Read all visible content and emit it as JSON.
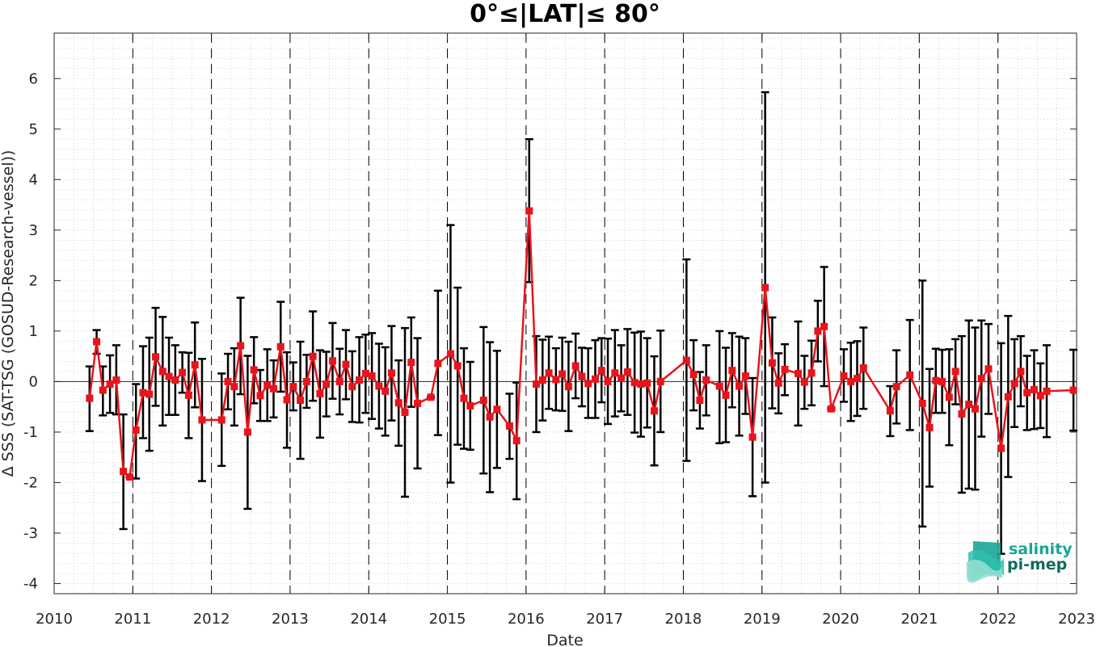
{
  "chart_data": {
    "type": "line",
    "title": "0°≤|LAT|≤ 80°",
    "xlabel": "Date",
    "ylabel": "Δ SSS (SAT-TSG (GOSUD-Research-vessel))",
    "xlim": [
      2010,
      2023
    ],
    "ylim": [
      -4.2,
      6.9
    ],
    "xticks": [
      "2010",
      "2011",
      "2012",
      "2013",
      "2014",
      "2015",
      "2016",
      "2017",
      "2018",
      "2019",
      "2020",
      "2021",
      "2022",
      "2023"
    ],
    "yticks": [
      "-4",
      "-3",
      "-2",
      "-1",
      "0",
      "1",
      "2",
      "3",
      "4",
      "5",
      "6"
    ],
    "grid": "dotted minor grid",
    "zero_line": 0,
    "year_separators": [
      2011,
      2012,
      2013,
      2014,
      2015,
      2016,
      2017,
      2018,
      2019,
      2020,
      2021,
      2022
    ],
    "series": [
      {
        "color": "#e8141c",
        "errorbar_color": "#000000",
        "marker": "square",
        "points": [
          {
            "x": 2010.45,
            "y": -0.33,
            "lo": -0.98,
            "hi": 0.3
          },
          {
            "x": 2010.54,
            "y": 0.79,
            "lo": 0.55,
            "hi": 1.02
          },
          {
            "x": 2010.62,
            "y": -0.17,
            "lo": -0.67,
            "hi": 0.3
          },
          {
            "x": 2010.71,
            "y": -0.05,
            "lo": -0.62,
            "hi": 0.52
          },
          {
            "x": 2010.79,
            "y": 0.03,
            "lo": -0.65,
            "hi": 0.72
          },
          {
            "x": 2010.88,
            "y": -1.78,
            "lo": -2.92,
            "hi": -0.65
          },
          {
            "x": 2010.96,
            "y": -1.89,
            "lo": -1.9,
            "hi": -1.88
          },
          {
            "x": 2011.04,
            "y": -0.96,
            "lo": -1.92,
            "hi": -0.05
          },
          {
            "x": 2011.13,
            "y": -0.22,
            "lo": -1.12,
            "hi": 0.7
          },
          {
            "x": 2011.21,
            "y": -0.25,
            "lo": -1.37,
            "hi": 0.87
          },
          {
            "x": 2011.29,
            "y": 0.49,
            "lo": -0.48,
            "hi": 1.46
          },
          {
            "x": 2011.38,
            "y": 0.2,
            "lo": -0.87,
            "hi": 1.28
          },
          {
            "x": 2011.46,
            "y": 0.1,
            "lo": -0.66,
            "hi": 0.87
          },
          {
            "x": 2011.54,
            "y": 0.03,
            "lo": -0.66,
            "hi": 0.72
          },
          {
            "x": 2011.63,
            "y": 0.18,
            "lo": -0.22,
            "hi": 0.58
          },
          {
            "x": 2011.71,
            "y": -0.27,
            "lo": -1.12,
            "hi": 0.57
          },
          {
            "x": 2011.79,
            "y": 0.33,
            "lo": -0.51,
            "hi": 1.17
          },
          {
            "x": 2011.88,
            "y": -0.76,
            "lo": -1.97,
            "hi": 0.45
          },
          {
            "x": 2012.13,
            "y": -0.76,
            "lo": -1.67,
            "hi": 0.16
          },
          {
            "x": 2012.21,
            "y": 0.0,
            "lo": -0.55,
            "hi": 0.55
          },
          {
            "x": 2012.29,
            "y": -0.1,
            "lo": -0.87,
            "hi": 0.66
          },
          {
            "x": 2012.37,
            "y": 0.71,
            "lo": -0.25,
            "hi": 1.66
          },
          {
            "x": 2012.46,
            "y": -1.0,
            "lo": -2.52,
            "hi": 0.51
          },
          {
            "x": 2012.54,
            "y": 0.23,
            "lo": -0.43,
            "hi": 0.88
          },
          {
            "x": 2012.62,
            "y": -0.28,
            "lo": -0.78,
            "hi": 0.23
          },
          {
            "x": 2012.71,
            "y": -0.07,
            "lo": -0.78,
            "hi": 0.64
          },
          {
            "x": 2012.79,
            "y": -0.14,
            "lo": -0.71,
            "hi": 0.42
          },
          {
            "x": 2012.88,
            "y": 0.69,
            "lo": -0.2,
            "hi": 1.58
          },
          {
            "x": 2012.96,
            "y": -0.36,
            "lo": -1.31,
            "hi": 0.58
          },
          {
            "x": 2013.04,
            "y": -0.1,
            "lo": -0.57,
            "hi": 0.38
          },
          {
            "x": 2013.13,
            "y": -0.37,
            "lo": -1.53,
            "hi": 0.79
          },
          {
            "x": 2013.21,
            "y": 0.0,
            "lo": -0.52,
            "hi": 0.53
          },
          {
            "x": 2013.29,
            "y": 0.5,
            "lo": -0.38,
            "hi": 1.39
          },
          {
            "x": 2013.38,
            "y": -0.24,
            "lo": -1.11,
            "hi": 0.62
          },
          {
            "x": 2013.46,
            "y": -0.05,
            "lo": -0.69,
            "hi": 0.59
          },
          {
            "x": 2013.54,
            "y": 0.41,
            "lo": -0.34,
            "hi": 1.16
          },
          {
            "x": 2013.63,
            "y": 0.0,
            "lo": -0.65,
            "hi": 0.65
          },
          {
            "x": 2013.71,
            "y": 0.34,
            "lo": -0.35,
            "hi": 1.02
          },
          {
            "x": 2013.79,
            "y": -0.1,
            "lo": -0.8,
            "hi": 0.6
          },
          {
            "x": 2013.88,
            "y": 0.03,
            "lo": -0.81,
            "hi": 0.88
          },
          {
            "x": 2013.96,
            "y": 0.16,
            "lo": -0.62,
            "hi": 0.93
          },
          {
            "x": 2014.04,
            "y": 0.11,
            "lo": -0.74,
            "hi": 0.96
          },
          {
            "x": 2014.13,
            "y": -0.09,
            "lo": -0.93,
            "hi": 0.75
          },
          {
            "x": 2014.21,
            "y": -0.19,
            "lo": -1.07,
            "hi": 0.68
          },
          {
            "x": 2014.29,
            "y": 0.17,
            "lo": -0.77,
            "hi": 1.1
          },
          {
            "x": 2014.38,
            "y": -0.42,
            "lo": -1.27,
            "hi": 0.42
          },
          {
            "x": 2014.46,
            "y": -0.61,
            "lo": -2.28,
            "hi": 1.06
          },
          {
            "x": 2014.54,
            "y": 0.38,
            "lo": -0.5,
            "hi": 1.27
          },
          {
            "x": 2014.62,
            "y": -0.43,
            "lo": -1.72,
            "hi": 0.86
          },
          {
            "x": 2014.79,
            "y": -0.31,
            "lo": -0.32,
            "hi": -0.3
          },
          {
            "x": 2014.88,
            "y": 0.36,
            "lo": -1.06,
            "hi": 1.8
          },
          {
            "x": 2015.04,
            "y": 0.55,
            "lo": -2.0,
            "hi": 3.1
          },
          {
            "x": 2015.13,
            "y": 0.31,
            "lo": -1.25,
            "hi": 1.86
          },
          {
            "x": 2015.21,
            "y": -0.33,
            "lo": -1.33,
            "hi": 0.66
          },
          {
            "x": 2015.29,
            "y": -0.48,
            "lo": -1.35,
            "hi": 0.39
          },
          {
            "x": 2015.46,
            "y": -0.37,
            "lo": -1.82,
            "hi": 1.08
          },
          {
            "x": 2015.54,
            "y": -0.7,
            "lo": -2.19,
            "hi": 0.78
          },
          {
            "x": 2015.63,
            "y": -0.55,
            "lo": -1.71,
            "hi": 0.61
          },
          {
            "x": 2015.79,
            "y": -0.88,
            "lo": -1.53,
            "hi": -0.24
          },
          {
            "x": 2015.88,
            "y": -1.17,
            "lo": -2.33,
            "hi": -0.02
          },
          {
            "x": 2016.04,
            "y": 3.38,
            "lo": 1.97,
            "hi": 4.8
          },
          {
            "x": 2016.13,
            "y": -0.05,
            "lo": -1.0,
            "hi": 0.9
          },
          {
            "x": 2016.21,
            "y": 0.03,
            "lo": -0.77,
            "hi": 0.83
          },
          {
            "x": 2016.29,
            "y": 0.17,
            "lo": -0.54,
            "hi": 0.89
          },
          {
            "x": 2016.38,
            "y": 0.04,
            "lo": -0.57,
            "hi": 0.66
          },
          {
            "x": 2016.46,
            "y": 0.15,
            "lo": -0.58,
            "hi": 0.87
          },
          {
            "x": 2016.54,
            "y": -0.1,
            "lo": -0.98,
            "hi": 0.79
          },
          {
            "x": 2016.63,
            "y": 0.31,
            "lo": -0.33,
            "hi": 0.95
          },
          {
            "x": 2016.71,
            "y": 0.1,
            "lo": -0.49,
            "hi": 0.67
          },
          {
            "x": 2016.79,
            "y": -0.04,
            "lo": -0.72,
            "hi": 0.66
          },
          {
            "x": 2016.88,
            "y": 0.05,
            "lo": -0.72,
            "hi": 0.82
          },
          {
            "x": 2016.96,
            "y": 0.22,
            "lo": -0.41,
            "hi": 0.86
          },
          {
            "x": 2017.04,
            "y": 0.0,
            "lo": -0.84,
            "hi": 0.85
          },
          {
            "x": 2017.13,
            "y": 0.17,
            "lo": -0.69,
            "hi": 1.02
          },
          {
            "x": 2017.21,
            "y": 0.07,
            "lo": -0.59,
            "hi": 0.72
          },
          {
            "x": 2017.29,
            "y": 0.19,
            "lo": -0.66,
            "hi": 1.04
          },
          {
            "x": 2017.38,
            "y": -0.02,
            "lo": -1.01,
            "hi": 0.97
          },
          {
            "x": 2017.46,
            "y": -0.05,
            "lo": -1.09,
            "hi": 0.99
          },
          {
            "x": 2017.54,
            "y": -0.03,
            "lo": -0.91,
            "hi": 0.86
          },
          {
            "x": 2017.63,
            "y": -0.58,
            "lo": -1.66,
            "hi": 0.5
          },
          {
            "x": 2017.71,
            "y": 0.0,
            "lo": -1.0,
            "hi": 1.01
          },
          {
            "x": 2018.04,
            "y": 0.42,
            "lo": -1.57,
            "hi": 2.42
          },
          {
            "x": 2018.13,
            "y": 0.14,
            "lo": -0.57,
            "hi": 0.82
          },
          {
            "x": 2018.21,
            "y": -0.37,
            "lo": -0.93,
            "hi": 0.19
          },
          {
            "x": 2018.29,
            "y": 0.03,
            "lo": -0.67,
            "hi": 0.72
          },
          {
            "x": 2018.46,
            "y": -0.09,
            "lo": -1.22,
            "hi": 1.0
          },
          {
            "x": 2018.54,
            "y": -0.27,
            "lo": -1.2,
            "hi": 0.67
          },
          {
            "x": 2018.62,
            "y": 0.22,
            "lo": -0.51,
            "hi": 0.96
          },
          {
            "x": 2018.71,
            "y": -0.09,
            "lo": -1.07,
            "hi": 0.89
          },
          {
            "x": 2018.79,
            "y": 0.11,
            "lo": -0.64,
            "hi": 0.86
          },
          {
            "x": 2018.88,
            "y": -1.1,
            "lo": -2.27,
            "hi": 0.07
          },
          {
            "x": 2019.04,
            "y": 1.86,
            "lo": -2.0,
            "hi": 5.73
          },
          {
            "x": 2019.13,
            "y": 0.37,
            "lo": -0.53,
            "hi": 1.27
          },
          {
            "x": 2019.21,
            "y": -0.03,
            "lo": -0.63,
            "hi": 0.56
          },
          {
            "x": 2019.29,
            "y": 0.24,
            "lo": -0.27,
            "hi": 0.74
          },
          {
            "x": 2019.46,
            "y": 0.16,
            "lo": -0.87,
            "hi": 1.19
          },
          {
            "x": 2019.54,
            "y": -0.01,
            "lo": -0.54,
            "hi": 0.51
          },
          {
            "x": 2019.63,
            "y": 0.17,
            "lo": -0.47,
            "hi": 0.81
          },
          {
            "x": 2019.71,
            "y": 1.0,
            "lo": 0.4,
            "hi": 1.6
          },
          {
            "x": 2019.79,
            "y": 1.09,
            "lo": -0.09,
            "hi": 2.27
          },
          {
            "x": 2019.88,
            "y": -0.54,
            "lo": -0.56,
            "hi": -0.52
          },
          {
            "x": 2020.04,
            "y": 0.11,
            "lo": -0.4,
            "hi": 0.64
          },
          {
            "x": 2020.13,
            "y": 0.0,
            "lo": -0.78,
            "hi": 0.77
          },
          {
            "x": 2020.21,
            "y": 0.06,
            "lo": -0.68,
            "hi": 0.8
          },
          {
            "x": 2020.29,
            "y": 0.27,
            "lo": -0.54,
            "hi": 1.07
          },
          {
            "x": 2020.63,
            "y": -0.58,
            "lo": -1.08,
            "hi": -0.09
          },
          {
            "x": 2020.71,
            "y": -0.1,
            "lo": -0.83,
            "hi": 0.62
          },
          {
            "x": 2020.88,
            "y": 0.13,
            "lo": -0.96,
            "hi": 1.22
          },
          {
            "x": 2021.04,
            "y": -0.43,
            "lo": -2.87,
            "hi": 2.0
          },
          {
            "x": 2021.13,
            "y": -0.91,
            "lo": -2.08,
            "hi": 0.25
          },
          {
            "x": 2021.21,
            "y": 0.02,
            "lo": -0.62,
            "hi": 0.65
          },
          {
            "x": 2021.29,
            "y": 0.0,
            "lo": -0.62,
            "hi": 0.63
          },
          {
            "x": 2021.38,
            "y": -0.31,
            "lo": -1.26,
            "hi": 0.64
          },
          {
            "x": 2021.46,
            "y": 0.2,
            "lo": -0.45,
            "hi": 0.84
          },
          {
            "x": 2021.54,
            "y": -0.64,
            "lo": -2.2,
            "hi": 0.9
          },
          {
            "x": 2021.63,
            "y": -0.45,
            "lo": -2.12,
            "hi": 1.21
          },
          {
            "x": 2021.71,
            "y": -0.54,
            "lo": -2.14,
            "hi": 1.07
          },
          {
            "x": 2021.79,
            "y": 0.06,
            "lo": -1.09,
            "hi": 1.21
          },
          {
            "x": 2021.88,
            "y": 0.25,
            "lo": -0.64,
            "hi": 1.14
          },
          {
            "x": 2022.04,
            "y": -1.32,
            "lo": -3.41,
            "hi": 0.76
          },
          {
            "x": 2022.13,
            "y": -0.3,
            "lo": -1.89,
            "hi": 1.3
          },
          {
            "x": 2022.21,
            "y": -0.04,
            "lo": -0.9,
            "hi": 0.84
          },
          {
            "x": 2022.29,
            "y": 0.2,
            "lo": -0.49,
            "hi": 0.9
          },
          {
            "x": 2022.37,
            "y": -0.22,
            "lo": -0.96,
            "hi": 0.51
          },
          {
            "x": 2022.46,
            "y": -0.16,
            "lo": -0.94,
            "hi": 0.62
          },
          {
            "x": 2022.54,
            "y": -0.28,
            "lo": -0.92,
            "hi": 0.36
          },
          {
            "x": 2022.62,
            "y": -0.19,
            "lo": -1.1,
            "hi": 0.72
          },
          {
            "x": 2022.96,
            "y": -0.17,
            "lo": -0.97,
            "hi": 0.63
          }
        ]
      }
    ]
  },
  "logo": {
    "line1": "salinity",
    "line2": "pi-mep",
    "line1_color": "#1aa596",
    "line2_color": "#106a5d"
  }
}
